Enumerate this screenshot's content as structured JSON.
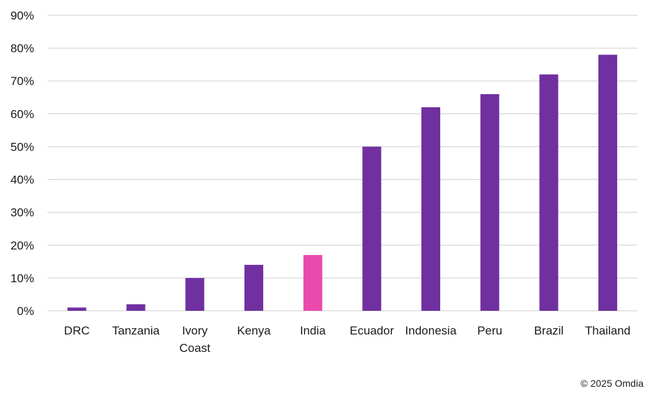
{
  "chart_data": {
    "type": "bar",
    "title": "",
    "xlabel": "",
    "ylabel": "",
    "categories": [
      "DRC",
      "Tanzania",
      "Ivory Coast",
      "Kenya",
      "India",
      "Ecuador",
      "Indonesia",
      "Peru",
      "Brazil",
      "Thailand"
    ],
    "values": [
      1,
      2,
      10,
      14,
      17,
      50,
      62,
      66,
      72,
      78
    ],
    "ylim": [
      0,
      90
    ],
    "yticks": [
      "0%",
      "10%",
      "20%",
      "30%",
      "40%",
      "50%",
      "60%",
      "70%",
      "80%",
      "90%"
    ],
    "grid": true,
    "bar_color": "#7030a0",
    "highlight_category": "India",
    "highlight_color": "#e94aab",
    "gridline_color": "#d9d9d9"
  },
  "footer": {
    "copyright": "© 2025 Omdia"
  }
}
